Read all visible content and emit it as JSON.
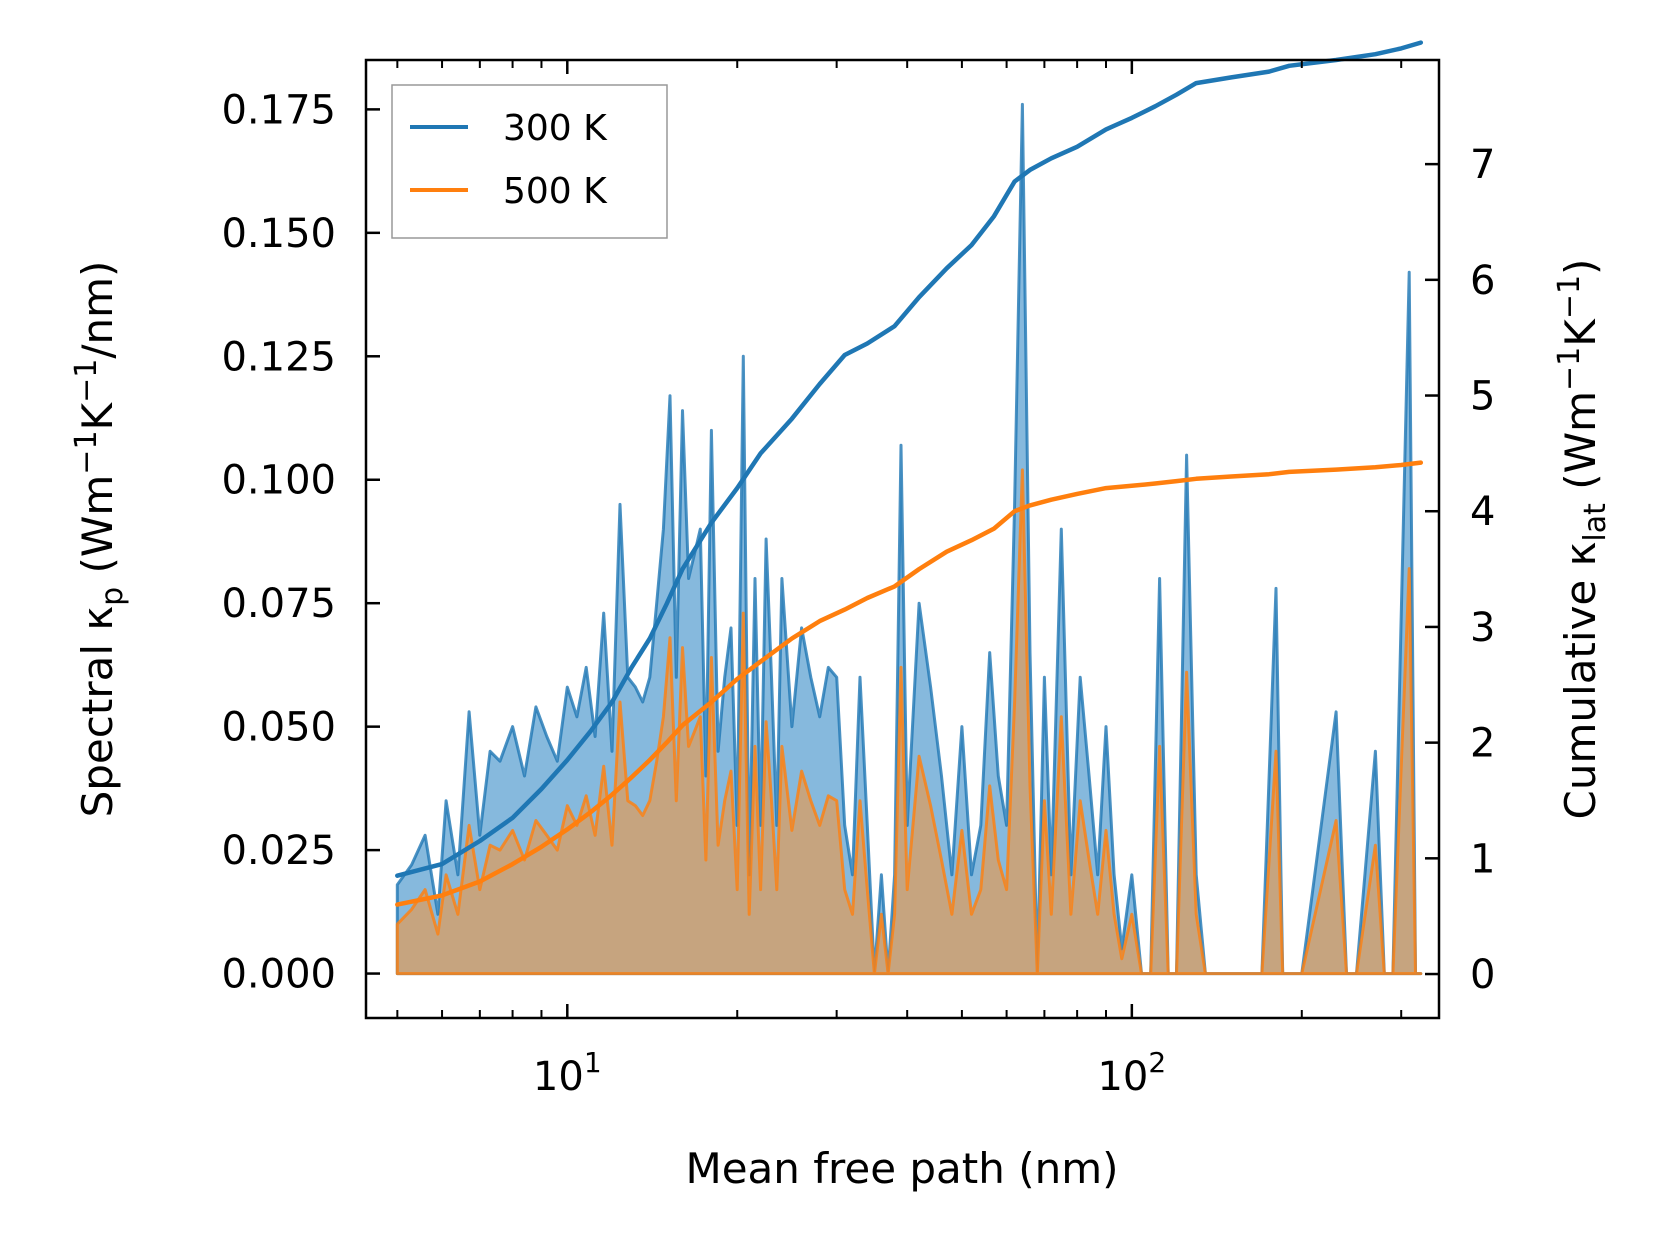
{
  "chart_data": {
    "type": "line",
    "x_scale": "log",
    "xlabel": "Mean free path (nm)",
    "xlim": [
      4.4,
      350
    ],
    "x_ticks": [
      {
        "base": "10",
        "exp": "1",
        "value": 10
      },
      {
        "base": "10",
        "exp": "2",
        "value": 100
      }
    ],
    "y_left": {
      "label_parts": [
        "Spectral κ",
        "p",
        " (Wm",
        "−1",
        "K",
        "−1",
        "/nm)"
      ],
      "lim": [
        -0.009,
        0.185
      ],
      "ticks": [
        "0.000",
        "0.025",
        "0.050",
        "0.075",
        "0.100",
        "0.125",
        "0.150",
        "0.175"
      ],
      "tick_values": [
        0,
        0.025,
        0.05,
        0.075,
        0.1,
        0.125,
        0.15,
        0.175
      ]
    },
    "y_right": {
      "label_parts": [
        "Cumulative κ",
        "lat",
        " (Wm",
        "−1",
        "K",
        "−1",
        ")"
      ],
      "lim": [
        -0.38,
        7.9
      ],
      "ticks": [
        "0",
        "1",
        "2",
        "3",
        "4",
        "5",
        "6",
        "7"
      ],
      "tick_values": [
        0,
        1,
        2,
        3,
        4,
        5,
        6,
        7
      ]
    },
    "legend": {
      "position": "top-left",
      "entries": [
        "300 K",
        "500 K"
      ]
    },
    "colors": {
      "s300": "#1f77b4",
      "s500": "#ff7f0e",
      "fill300": "#5ea1d1",
      "fill500": "#d1a06e"
    },
    "series": [
      {
        "name": "300 K",
        "spectral": {
          "x": [
            5.0,
            5.3,
            5.6,
            5.9,
            6.1,
            6.4,
            6.7,
            7.0,
            7.3,
            7.6,
            8.0,
            8.4,
            8.8,
            9.2,
            9.6,
            10.0,
            10.4,
            10.8,
            11.2,
            11.6,
            12.0,
            12.4,
            12.8,
            13.2,
            13.6,
            14.0,
            14.4,
            14.8,
            15.2,
            15.6,
            16.0,
            16.4,
            16.8,
            17.2,
            17.6,
            18.0,
            18.5,
            19.0,
            19.5,
            20.0,
            20.5,
            21.0,
            21.5,
            22.0,
            22.5,
            23.0,
            23.5,
            24.0,
            25.0,
            26.0,
            27.0,
            28.0,
            29.0,
            30.0,
            31.0,
            32.0,
            33.0,
            34.0,
            35.0,
            36.0,
            37.0,
            38.0,
            39.0,
            40.0,
            42.0,
            44.0,
            46.0,
            48.0,
            50.0,
            52.0,
            54.0,
            56.0,
            58.0,
            60.0,
            62.0,
            64.0,
            66.0,
            68.0,
            70.0,
            72.0,
            75.0,
            78.0,
            81.0,
            84.0,
            87.0,
            90.0,
            93.0,
            96.0,
            100.0,
            104.0,
            108.0,
            112.0,
            116.0,
            120.0,
            125.0,
            130.0,
            135.0,
            140.0,
            150.0,
            170.0,
            180.0,
            185.0,
            190.0,
            200.0,
            230.0,
            240.0,
            250.0,
            270.0,
            280.0,
            290.0,
            310.0,
            318.0,
            325.0
          ],
          "y": [
            0.018,
            0.022,
            0.028,
            0.012,
            0.035,
            0.02,
            0.053,
            0.028,
            0.045,
            0.043,
            0.05,
            0.04,
            0.054,
            0.048,
            0.043,
            0.058,
            0.052,
            0.062,
            0.048,
            0.073,
            0.045,
            0.095,
            0.06,
            0.058,
            0.055,
            0.06,
            0.075,
            0.09,
            0.117,
            0.06,
            0.114,
            0.08,
            0.085,
            0.09,
            0.04,
            0.11,
            0.045,
            0.06,
            0.07,
            0.03,
            0.125,
            0.02,
            0.08,
            0.03,
            0.088,
            0.06,
            0.03,
            0.08,
            0.05,
            0.07,
            0.06,
            0.052,
            0.062,
            0.06,
            0.03,
            0.02,
            0.06,
            0.03,
            0.0,
            0.02,
            0.0,
            0.02,
            0.107,
            0.03,
            0.075,
            0.058,
            0.04,
            0.02,
            0.05,
            0.02,
            0.03,
            0.065,
            0.04,
            0.03,
            0.095,
            0.176,
            0.065,
            0.0,
            0.06,
            0.02,
            0.09,
            0.02,
            0.06,
            0.04,
            0.02,
            0.05,
            0.02,
            0.005,
            0.02,
            0.0,
            0.0,
            0.08,
            0.0,
            0.0,
            0.105,
            0.02,
            0.0,
            0.0,
            0.0,
            0.0,
            0.078,
            0.0,
            0.0,
            0.0,
            0.053,
            0.0,
            0.0,
            0.045,
            0.0,
            0.0,
            0.142,
            0.0,
            0.0
          ]
        },
        "cumulative": {
          "x": [
            5.0,
            6.0,
            7.0,
            8.0,
            9.0,
            10.0,
            11.0,
            12.0,
            13.0,
            14.0,
            15.0,
            16.0,
            18.0,
            20.0,
            22.0,
            25.0,
            28.0,
            31.0,
            34.0,
            38.0,
            42.0,
            47.0,
            52.0,
            57.0,
            62.0,
            66.0,
            72.0,
            80.0,
            90.0,
            100.0,
            110.0,
            120.0,
            130.0,
            150.0,
            175.0,
            190.0,
            230.0,
            270.0,
            300.0,
            325.0
          ],
          "y": [
            0.85,
            0.95,
            1.15,
            1.35,
            1.6,
            1.85,
            2.1,
            2.35,
            2.65,
            2.9,
            3.2,
            3.5,
            3.9,
            4.2,
            4.5,
            4.8,
            5.1,
            5.35,
            5.45,
            5.6,
            5.85,
            6.1,
            6.3,
            6.55,
            6.85,
            6.95,
            7.05,
            7.15,
            7.3,
            7.4,
            7.5,
            7.6,
            7.7,
            7.75,
            7.8,
            7.85,
            7.9,
            7.95,
            8.0,
            8.05
          ]
        }
      },
      {
        "name": "500 K",
        "spectral": {
          "x": [
            5.0,
            5.3,
            5.6,
            5.9,
            6.1,
            6.4,
            6.7,
            7.0,
            7.3,
            7.6,
            8.0,
            8.4,
            8.8,
            9.2,
            9.6,
            10.0,
            10.4,
            10.8,
            11.2,
            11.6,
            12.0,
            12.4,
            12.8,
            13.2,
            13.6,
            14.0,
            14.4,
            14.8,
            15.2,
            15.6,
            16.0,
            16.4,
            16.8,
            17.2,
            17.6,
            18.0,
            18.5,
            19.0,
            19.5,
            20.0,
            20.5,
            21.0,
            21.5,
            22.0,
            22.5,
            23.0,
            23.5,
            24.0,
            25.0,
            26.0,
            27.0,
            28.0,
            29.0,
            30.0,
            31.0,
            32.0,
            33.0,
            34.0,
            35.0,
            36.0,
            37.0,
            38.0,
            39.0,
            40.0,
            42.0,
            44.0,
            46.0,
            48.0,
            50.0,
            52.0,
            54.0,
            56.0,
            58.0,
            60.0,
            62.0,
            64.0,
            66.0,
            68.0,
            70.0,
            72.0,
            75.0,
            78.0,
            81.0,
            84.0,
            87.0,
            90.0,
            93.0,
            96.0,
            100.0,
            104.0,
            108.0,
            112.0,
            116.0,
            120.0,
            125.0,
            130.0,
            135.0,
            140.0,
            150.0,
            170.0,
            180.0,
            185.0,
            190.0,
            200.0,
            230.0,
            240.0,
            250.0,
            270.0,
            280.0,
            290.0,
            310.0,
            318.0,
            325.0
          ],
          "y": [
            0.01,
            0.013,
            0.017,
            0.008,
            0.02,
            0.012,
            0.03,
            0.017,
            0.026,
            0.025,
            0.029,
            0.023,
            0.031,
            0.028,
            0.025,
            0.034,
            0.03,
            0.036,
            0.028,
            0.042,
            0.026,
            0.055,
            0.035,
            0.034,
            0.032,
            0.035,
            0.043,
            0.052,
            0.068,
            0.035,
            0.066,
            0.046,
            0.049,
            0.052,
            0.023,
            0.064,
            0.026,
            0.035,
            0.041,
            0.017,
            0.073,
            0.012,
            0.046,
            0.017,
            0.051,
            0.035,
            0.017,
            0.046,
            0.029,
            0.041,
            0.035,
            0.03,
            0.036,
            0.035,
            0.017,
            0.012,
            0.035,
            0.017,
            0.0,
            0.012,
            0.0,
            0.012,
            0.062,
            0.017,
            0.044,
            0.034,
            0.023,
            0.012,
            0.029,
            0.012,
            0.017,
            0.038,
            0.023,
            0.017,
            0.055,
            0.102,
            0.038,
            0.0,
            0.035,
            0.012,
            0.052,
            0.012,
            0.035,
            0.023,
            0.012,
            0.029,
            0.012,
            0.003,
            0.012,
            0.0,
            0.0,
            0.046,
            0.0,
            0.0,
            0.061,
            0.012,
            0.0,
            0.0,
            0.0,
            0.0,
            0.045,
            0.0,
            0.0,
            0.0,
            0.031,
            0.0,
            0.0,
            0.026,
            0.0,
            0.0,
            0.082,
            0.0,
            0.0
          ]
        },
        "cumulative": {
          "x": [
            5.0,
            6.0,
            7.0,
            8.0,
            9.0,
            10.0,
            11.0,
            12.0,
            13.0,
            14.0,
            15.0,
            16.0,
            18.0,
            20.0,
            22.0,
            25.0,
            28.0,
            31.0,
            34.0,
            38.0,
            42.0,
            47.0,
            52.0,
            57.0,
            62.0,
            66.0,
            72.0,
            80.0,
            90.0,
            100.0,
            110.0,
            120.0,
            130.0,
            150.0,
            175.0,
            190.0,
            230.0,
            270.0,
            300.0,
            325.0
          ],
          "y": [
            0.6,
            0.68,
            0.8,
            0.95,
            1.1,
            1.25,
            1.4,
            1.55,
            1.7,
            1.85,
            2.0,
            2.15,
            2.35,
            2.55,
            2.7,
            2.9,
            3.05,
            3.15,
            3.25,
            3.35,
            3.5,
            3.65,
            3.75,
            3.85,
            4.0,
            4.05,
            4.1,
            4.15,
            4.2,
            4.22,
            4.24,
            4.26,
            4.28,
            4.3,
            4.32,
            4.34,
            4.36,
            4.38,
            4.4,
            4.42
          ]
        }
      }
    ]
  }
}
